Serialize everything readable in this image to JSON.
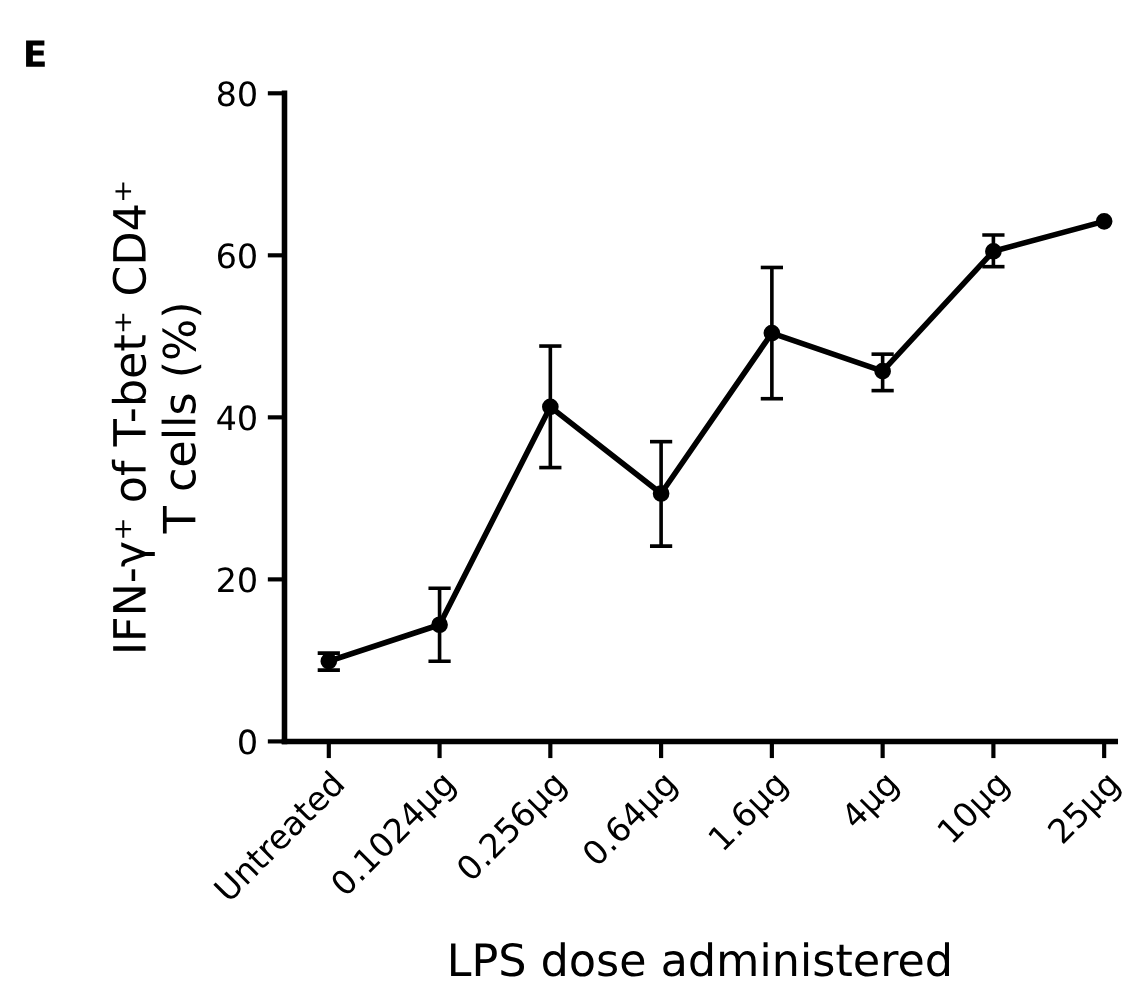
{
  "chart_data": {
    "type": "line",
    "title": "E",
    "xlabel": "LPS dose administered",
    "ylabel": "IFN-γ⁺ of T-bet⁺ CD4⁺\nT cells (%)",
    "categories": [
      "Untreated",
      "0.1024µg",
      "0.256µg",
      "0.64µg",
      "1.6µg",
      "4µg",
      "10µg",
      "25µg"
    ],
    "values": [
      9.9,
      14.4,
      41.3,
      30.6,
      50.4,
      45.7,
      60.5,
      64.2
    ],
    "errors": [
      [
        8.8,
        10.9
      ],
      [
        9.9,
        18.9
      ],
      [
        33.8,
        48.8
      ],
      [
        24.1,
        37.0
      ],
      [
        42.3,
        58.5
      ],
      [
        43.3,
        47.8
      ],
      [
        58.6,
        62.5
      ],
      null
    ],
    "color": "#000000",
    "marker": "circle",
    "line_style": "solid",
    "ylim": [
      0,
      80
    ],
    "yticks": [
      0,
      20,
      40,
      60,
      80
    ],
    "grid": false,
    "legend": false
  }
}
